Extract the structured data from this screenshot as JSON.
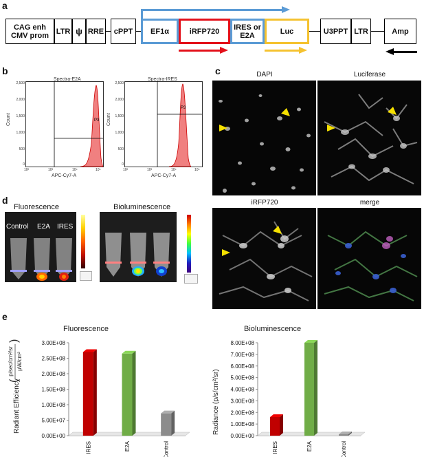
{
  "panels": {
    "a": "a",
    "b": "b",
    "c": "c",
    "d": "d",
    "e": "e"
  },
  "construct": {
    "elements": [
      "CAG enh CMV prom",
      "LTR",
      "ψ",
      "RRE",
      "cPPT",
      "EF1α",
      "iRFP720",
      "IRES or E2A",
      "Luc",
      "U3PPT",
      "LTR",
      "Amp"
    ],
    "colors": {
      "blue": "#5b9bd5",
      "red": "#e3101a",
      "yellow": "#f5c230",
      "black": "#000000"
    }
  },
  "flow": {
    "plots": [
      {
        "title": "Spectra-E2A",
        "gate": "P3",
        "xlabel": "APC-Cy7-A",
        "ylabel": "Count"
      },
      {
        "title": "Spectra-IRES",
        "gate": "P3",
        "xlabel": "APC-Cy7-A",
        "ylabel": "Count"
      }
    ],
    "yticks": [
      "2,500",
      "2,000",
      "1,500",
      "1,000",
      "500",
      "0"
    ],
    "xticks": [
      "10²",
      "10³",
      "10⁴",
      "10⁵"
    ]
  },
  "micro": {
    "labels": [
      "DAPI",
      "Luciferase",
      "iRFP720",
      "merge"
    ]
  },
  "imaging": {
    "fluorescence": {
      "title": "Fluorescence",
      "tubes": [
        "Control",
        "E2A",
        "IRES"
      ]
    },
    "bioluminescence": {
      "title": "Bioluminescence"
    }
  },
  "chart_data": [
    {
      "type": "bar",
      "title": "Fluorescence",
      "ylabel": "Radiant Efficiency",
      "ylabel_unit_num": "p/sec/cm²/sr",
      "ylabel_unit_den": "μW/cm²",
      "categories": [
        "IRES",
        "E2A",
        "Control"
      ],
      "values": [
        270000000,
        265000000,
        72000000
      ],
      "colors": [
        "#c00000",
        "#70ad47",
        "#8c8c8c"
      ],
      "ylim": [
        0,
        300000000
      ],
      "yticks": [
        "0.00E+00",
        "5.00E+07",
        "1.00E+08",
        "1.50E+08",
        "2.00E+08",
        "2.50E+08",
        "3.00E+08"
      ]
    },
    {
      "type": "bar",
      "title": "Bioluminescence",
      "ylabel": "Radiance (p/s/cm²/sr)",
      "categories": [
        "IRES",
        "E2A",
        "Control"
      ],
      "values": [
        160000000,
        800000000,
        12000000
      ],
      "colors": [
        "#c00000",
        "#70ad47",
        "#8c8c8c"
      ],
      "ylim": [
        0,
        800000000
      ],
      "yticks": [
        "0.00E+00",
        "1.00E+08",
        "2.00E+08",
        "3.00E+08",
        "4.00E+08",
        "5.00E+08",
        "6.00E+08",
        "7.00E+08",
        "8.00E+08"
      ]
    }
  ]
}
